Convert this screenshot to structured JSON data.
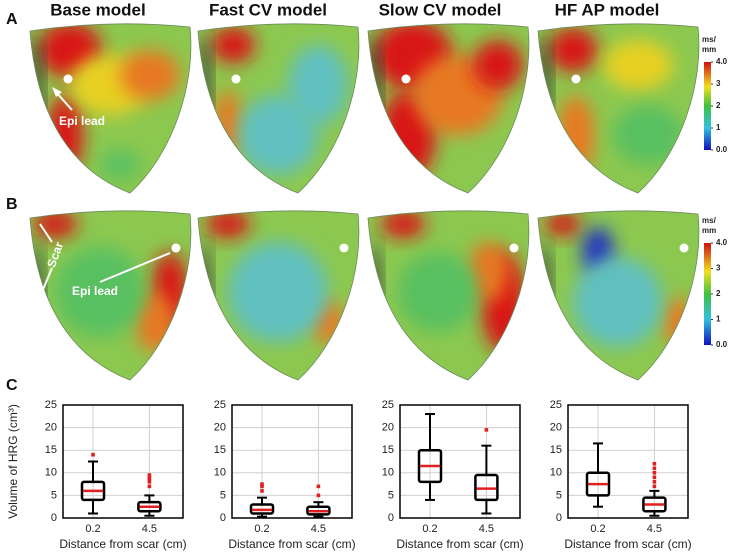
{
  "headers": [
    "Base model",
    "Fast CV model",
    "Slow CV model",
    "HF AP model"
  ],
  "heart_panels": [
    {
      "label": "A",
      "annotations": [
        "Epi lead"
      ]
    },
    {
      "label": "B",
      "annotations": [
        "Scar",
        "Epi lead"
      ]
    }
  ],
  "colorbar": {
    "title": [
      "ms/",
      "mm"
    ],
    "lim": [
      0,
      4
    ],
    "ticks": [
      {
        "value": 4,
        "label": "4.0"
      },
      3,
      2,
      1,
      {
        "value": 0,
        "label": "0.0"
      }
    ]
  },
  "panel_c_label": "C",
  "chart_data": [
    {
      "type": "box",
      "ylabel": "Volume of HRG (cm³)",
      "xlabel": "Distance from scar (cm)",
      "categories": [
        "0.2",
        "4.5"
      ],
      "boxes": [
        {
          "whislo": 1,
          "q1": 4,
          "med": 6,
          "q3": 8,
          "whishi": 12.5,
          "fliers": [
            14
          ]
        },
        {
          "whislo": 0.5,
          "q1": 1.5,
          "med": 2.5,
          "q3": 3.5,
          "whishi": 5,
          "fliers": [
            7,
            8,
            8.5,
            9,
            9.5
          ]
        }
      ],
      "ylim": [
        0,
        25
      ],
      "yticks": [
        0,
        5,
        10,
        15,
        20,
        25
      ],
      "grid": true,
      "box_color": "#000000",
      "median_color": "#e02020",
      "flier_color": "#e02020"
    },
    {
      "type": "box",
      "xlabel": "Distance from scar (cm)",
      "categories": [
        "0.2",
        "4.5"
      ],
      "boxes": [
        {
          "whislo": 0.3,
          "q1": 1,
          "med": 1.8,
          "q3": 3,
          "whishi": 4.5,
          "fliers": [
            6,
            7,
            7.5
          ]
        },
        {
          "whislo": 0.3,
          "q1": 0.8,
          "med": 1.5,
          "q3": 2.5,
          "whishi": 3.5,
          "fliers": [
            5,
            7
          ]
        }
      ],
      "ylim": [
        0,
        25
      ],
      "yticks": [
        0,
        5,
        10,
        15,
        20,
        25
      ],
      "grid": true,
      "box_color": "#000000",
      "median_color": "#e02020",
      "flier_color": "#e02020"
    },
    {
      "type": "box",
      "xlabel": "Distance from scar (cm)",
      "categories": [
        "0.2",
        "4.5"
      ],
      "boxes": [
        {
          "whislo": 4,
          "q1": 8,
          "med": 11.5,
          "q3": 15,
          "whishi": 23,
          "fliers": []
        },
        {
          "whislo": 1,
          "q1": 4,
          "med": 6.5,
          "q3": 9.5,
          "whishi": 16,
          "fliers": [
            19.5
          ]
        }
      ],
      "ylim": [
        0,
        25
      ],
      "yticks": [
        0,
        5,
        10,
        15,
        20,
        25
      ],
      "grid": true,
      "box_color": "#000000",
      "median_color": "#e02020",
      "flier_color": "#e02020"
    },
    {
      "type": "box",
      "xlabel": "Distance from scar (cm)",
      "categories": [
        "0.2",
        "4.5"
      ],
      "boxes": [
        {
          "whislo": 2.5,
          "q1": 5,
          "med": 7.5,
          "q3": 10,
          "whishi": 16.5,
          "fliers": []
        },
        {
          "whislo": 0.5,
          "q1": 1.5,
          "med": 3,
          "q3": 4.5,
          "whishi": 6,
          "fliers": [
            7,
            8,
            9,
            10,
            11,
            12
          ]
        }
      ],
      "ylim": [
        0,
        25
      ],
      "yticks": [
        0,
        5,
        10,
        15,
        20,
        25
      ],
      "grid": true,
      "box_color": "#000000",
      "median_color": "#e02020",
      "flier_color": "#e02020"
    }
  ]
}
